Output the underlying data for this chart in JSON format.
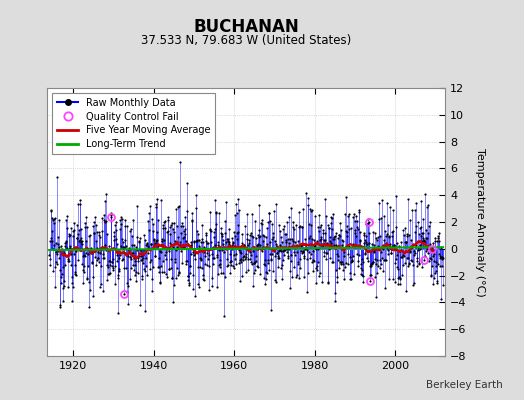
{
  "title": "BUCHANAN",
  "subtitle": "37.533 N, 79.683 W (United States)",
  "ylabel": "Temperature Anomaly (°C)",
  "credit": "Berkeley Earth",
  "ylim": [
    -8,
    12
  ],
  "yticks": [
    -8,
    -6,
    -4,
    -2,
    0,
    2,
    4,
    6,
    8,
    10,
    12
  ],
  "xlim": [
    1913.5,
    2012.5
  ],
  "xticks": [
    1920,
    1940,
    1960,
    1980,
    2000
  ],
  "start_year": 1914,
  "end_year": 2011,
  "raw_color": "#0000FF",
  "ma_color": "#CC0000",
  "trend_color": "#00AA00",
  "qc_color": "#FF44FF",
  "bg_color": "#DDDDDD",
  "plot_bg": "#FFFFFF",
  "seed": 12345,
  "noise_scale": 1.6,
  "ar_coeff": 0.25
}
